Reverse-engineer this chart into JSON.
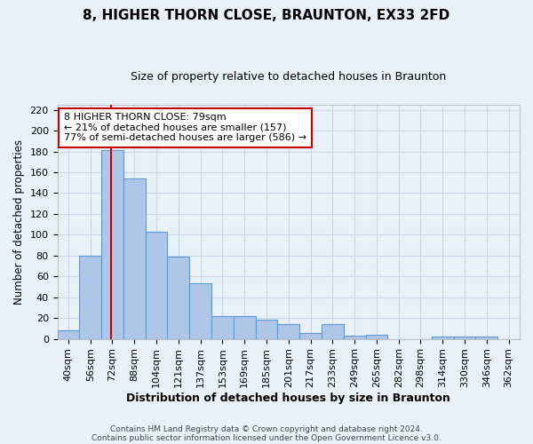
{
  "title": "8, HIGHER THORN CLOSE, BRAUNTON, EX33 2FD",
  "subtitle": "Size of property relative to detached houses in Braunton",
  "xlabel": "Distribution of detached houses by size in Braunton",
  "ylabel": "Number of detached properties",
  "bin_labels": [
    "40sqm",
    "56sqm",
    "72sqm",
    "88sqm",
    "104sqm",
    "121sqm",
    "137sqm",
    "153sqm",
    "169sqm",
    "185sqm",
    "201sqm",
    "217sqm",
    "233sqm",
    "249sqm",
    "265sqm",
    "282sqm",
    "298sqm",
    "314sqm",
    "330sqm",
    "346sqm",
    "362sqm"
  ],
  "bar_heights": [
    8,
    80,
    181,
    154,
    103,
    79,
    53,
    22,
    22,
    18,
    14,
    6,
    14,
    3,
    4,
    0,
    0,
    2,
    2,
    2,
    0
  ],
  "bar_color": "#aec6e8",
  "bar_edge_color": "#5b9bd5",
  "ylim": [
    0,
    225
  ],
  "yticks": [
    0,
    20,
    40,
    60,
    80,
    100,
    120,
    140,
    160,
    180,
    200,
    220
  ],
  "redline_x": 2.45,
  "annotation_text_line1": "8 HIGHER THORN CLOSE: 79sqm",
  "annotation_text_line2": "← 21% of detached houses are smaller (157)",
  "annotation_text_line3": "77% of semi-detached houses are larger (586) →",
  "annotation_box_color": "#ffffff",
  "annotation_box_edge_color": "#cc0000",
  "vline_color": "#cc0000",
  "footer_line1": "Contains HM Land Registry data © Crown copyright and database right 2024.",
  "footer_line2": "Contains public sector information licensed under the Open Government Licence v3.0.",
  "grid_color": "#c8d8e8",
  "background_color": "#e8f0f8",
  "title_fontsize": 11,
  "subtitle_fontsize": 9,
  "ylabel_fontsize": 8.5,
  "xlabel_fontsize": 9
}
